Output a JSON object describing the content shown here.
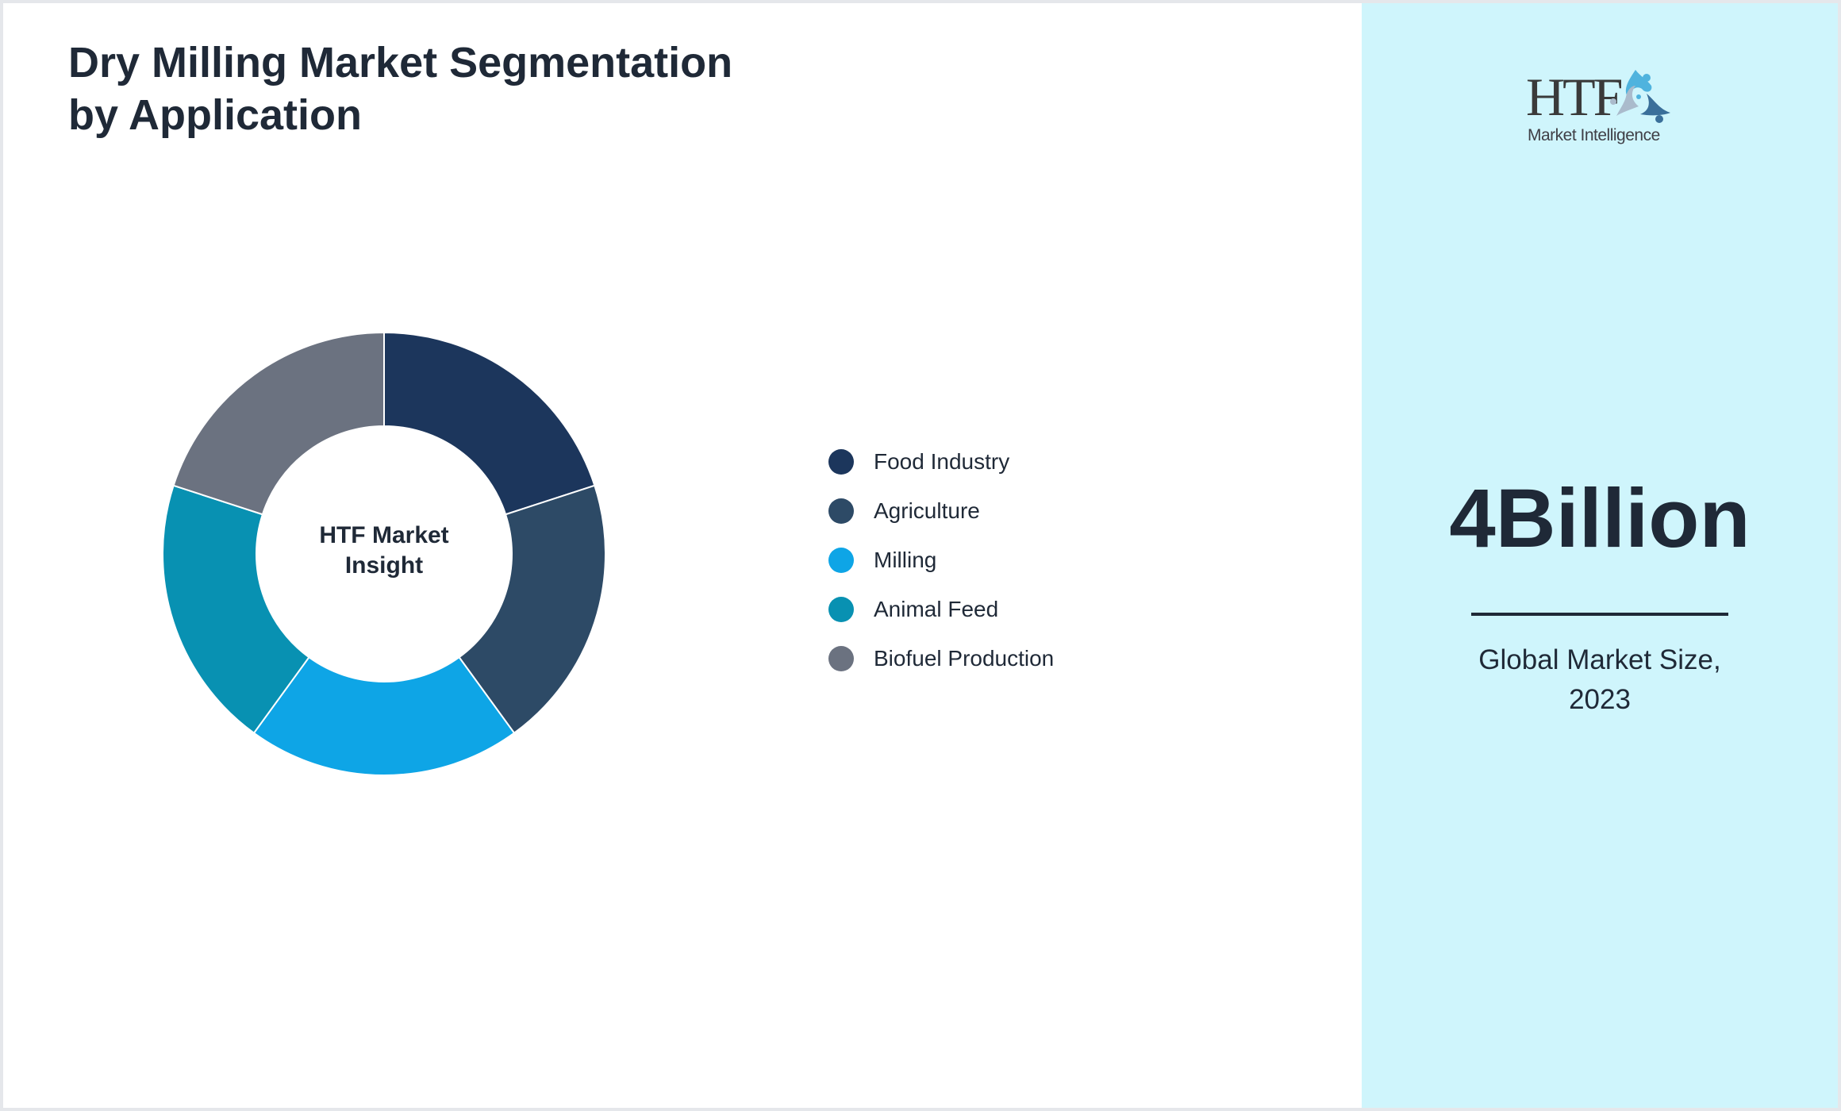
{
  "title": {
    "line1": "Dry Milling Market Segmentation",
    "line2": "by Application"
  },
  "donut": {
    "center_line1": "HTF Market",
    "center_line2": "Insight"
  },
  "legend": [
    {
      "label": "Food Industry",
      "color": "#1c365c"
    },
    {
      "label": "Agriculture",
      "color": "#2d4a66"
    },
    {
      "label": "Milling",
      "color": "#0ea5e6"
    },
    {
      "label": "Animal Feed",
      "color": "#0891b2"
    },
    {
      "label": "Biofuel Production",
      "color": "#6b7280"
    }
  ],
  "side_panel": {
    "logo": {
      "main": "HTF",
      "sub": "Market Intelligence",
      "icon": "people-circle-logo-icon"
    },
    "value": "4Billion",
    "caption_line1": "Global Market Size,",
    "caption_line2": "2023",
    "background": "#cff5fc"
  },
  "chart_data": {
    "type": "pie",
    "subtype": "donut",
    "title": "Dry Milling Market Segmentation by Application",
    "center_text": "HTF Market Insight",
    "categories": [
      "Food Industry",
      "Agriculture",
      "Milling",
      "Animal Feed",
      "Biofuel Production"
    ],
    "values": [
      20,
      20,
      20,
      20,
      20
    ],
    "colors": [
      "#1c365c",
      "#2d4a66",
      "#0ea5e6",
      "#0891b2",
      "#6b7280"
    ],
    "legend_position": "right",
    "start_angle_deg": 0,
    "direction": "clockwise"
  }
}
